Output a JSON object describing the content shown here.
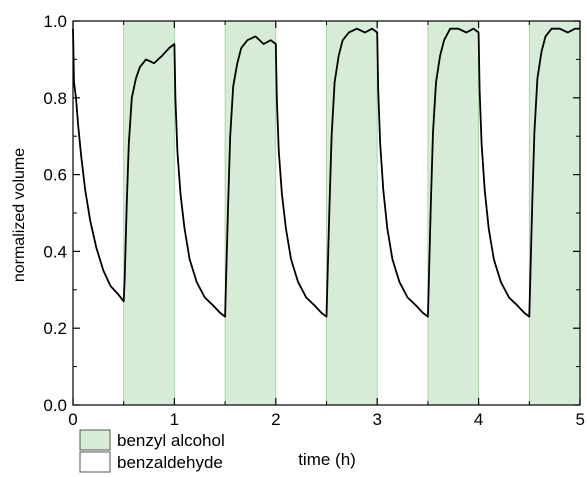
{
  "chart_data": {
    "type": "line",
    "xlabel": "time (h)",
    "ylabel": "normalized volume",
    "xlim": [
      0,
      5
    ],
    "ylim": [
      0,
      1.0
    ],
    "xticks": [
      "0",
      "1",
      "2",
      "3",
      "4",
      "5"
    ],
    "yticks": [
      "0.0",
      "0.2",
      "0.4",
      "0.6",
      "0.8",
      "1.0"
    ],
    "grid": false,
    "legend": {
      "position": "bottom-left",
      "entries": [
        {
          "label": "benzyl alcohol",
          "color": "#d6ecd6"
        },
        {
          "label": "benzaldehyde",
          "color": "#ffffff"
        }
      ]
    },
    "shaded_regions": [
      {
        "x0": 0.5,
        "x1": 1.0,
        "color": "#d6ecd6"
      },
      {
        "x0": 1.5,
        "x1": 2.0,
        "color": "#d6ecd6"
      },
      {
        "x0": 2.5,
        "x1": 3.0,
        "color": "#d6ecd6"
      },
      {
        "x0": 3.5,
        "x1": 4.0,
        "color": "#d6ecd6"
      },
      {
        "x0": 4.5,
        "x1": 5.0,
        "color": "#d6ecd6"
      }
    ],
    "series": [
      {
        "color": "#000000",
        "x": [
          0,
          0.01,
          0.02,
          0.03,
          0.05,
          0.08,
          0.12,
          0.17,
          0.23,
          0.3,
          0.37,
          0.44,
          0.5,
          0.51,
          0.53,
          0.55,
          0.58,
          0.62,
          0.66,
          0.72,
          0.8,
          0.88,
          0.95,
          1.0,
          1.01,
          1.03,
          1.06,
          1.1,
          1.15,
          1.22,
          1.3,
          1.38,
          1.45,
          1.5,
          1.51,
          1.53,
          1.55,
          1.58,
          1.62,
          1.66,
          1.72,
          1.8,
          1.88,
          1.95,
          2.0,
          2.01,
          2.03,
          2.06,
          2.1,
          2.15,
          2.22,
          2.3,
          2.38,
          2.45,
          2.5,
          2.51,
          2.53,
          2.55,
          2.58,
          2.62,
          2.66,
          2.72,
          2.8,
          2.88,
          2.95,
          3.0,
          3.01,
          3.03,
          3.06,
          3.1,
          3.15,
          3.22,
          3.3,
          3.38,
          3.45,
          3.5,
          3.51,
          3.53,
          3.55,
          3.58,
          3.62,
          3.66,
          3.72,
          3.8,
          3.88,
          3.95,
          4.0,
          4.01,
          4.03,
          4.06,
          4.1,
          4.15,
          4.22,
          4.3,
          4.38,
          4.45,
          4.5,
          4.51,
          4.53,
          4.55,
          4.58,
          4.62,
          4.66,
          4.72,
          4.8,
          4.88,
          4.95,
          5.0
        ],
        "y": [
          0.98,
          0.84,
          0.82,
          0.8,
          0.73,
          0.65,
          0.56,
          0.48,
          0.41,
          0.35,
          0.31,
          0.29,
          0.27,
          0.33,
          0.52,
          0.68,
          0.8,
          0.85,
          0.88,
          0.9,
          0.89,
          0.91,
          0.93,
          0.94,
          0.8,
          0.66,
          0.55,
          0.46,
          0.38,
          0.32,
          0.28,
          0.26,
          0.24,
          0.23,
          0.33,
          0.52,
          0.7,
          0.83,
          0.89,
          0.93,
          0.95,
          0.96,
          0.94,
          0.95,
          0.94,
          0.8,
          0.66,
          0.55,
          0.46,
          0.38,
          0.32,
          0.28,
          0.26,
          0.24,
          0.23,
          0.33,
          0.52,
          0.7,
          0.84,
          0.91,
          0.95,
          0.97,
          0.98,
          0.97,
          0.98,
          0.97,
          0.82,
          0.68,
          0.56,
          0.46,
          0.38,
          0.32,
          0.28,
          0.26,
          0.24,
          0.23,
          0.33,
          0.53,
          0.71,
          0.84,
          0.91,
          0.95,
          0.98,
          0.98,
          0.97,
          0.98,
          0.97,
          0.82,
          0.68,
          0.56,
          0.46,
          0.38,
          0.32,
          0.28,
          0.26,
          0.24,
          0.23,
          0.33,
          0.53,
          0.71,
          0.85,
          0.92,
          0.96,
          0.98,
          0.98,
          0.97,
          0.98,
          0.98
        ]
      }
    ]
  }
}
